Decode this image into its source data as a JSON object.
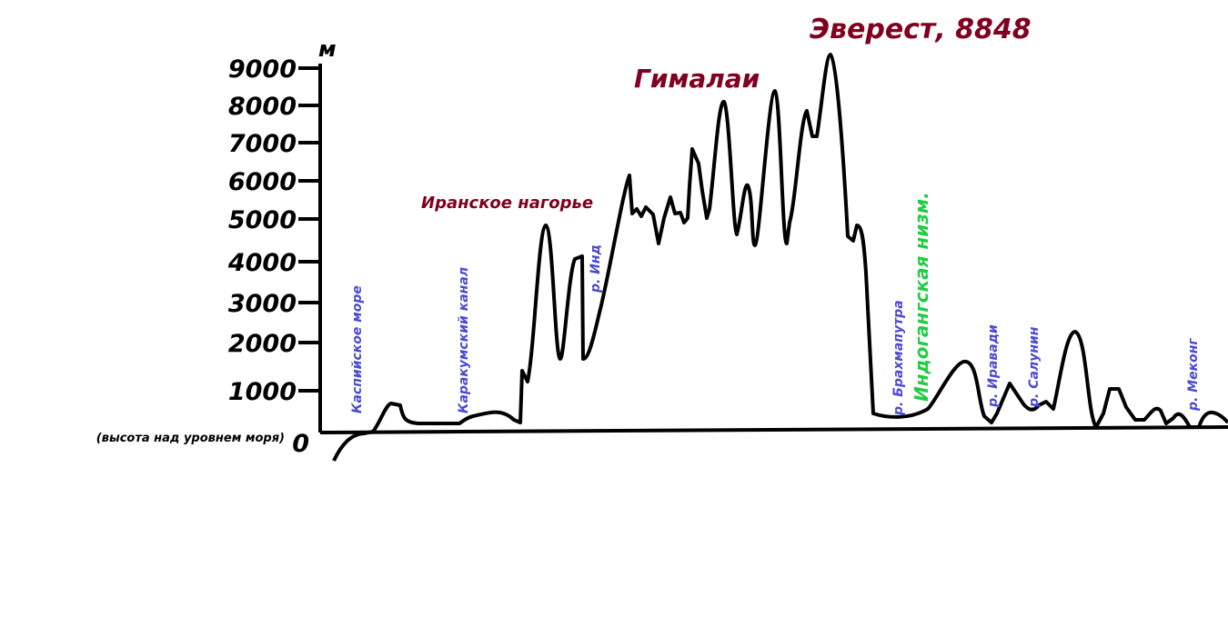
{
  "axis": {
    "unit": "м",
    "ticks": [
      "9000",
      "8000",
      "7000",
      "6000",
      "5000",
      "4000",
      "3000",
      "2000",
      "1000",
      "0"
    ],
    "note": "(высота над уровнем моря)"
  },
  "peaks": {
    "everest": "Эверест, 8848",
    "himalaya": "Гималаи",
    "iran": "Иранское нагорье"
  },
  "labels": [
    "Каспийское море",
    "Каракумский канал",
    "р. Инд",
    "р. Брахмапутра",
    "Индогангская низм.",
    "р. Иравади",
    "р. Салунин",
    "р. Меконг"
  ]
}
